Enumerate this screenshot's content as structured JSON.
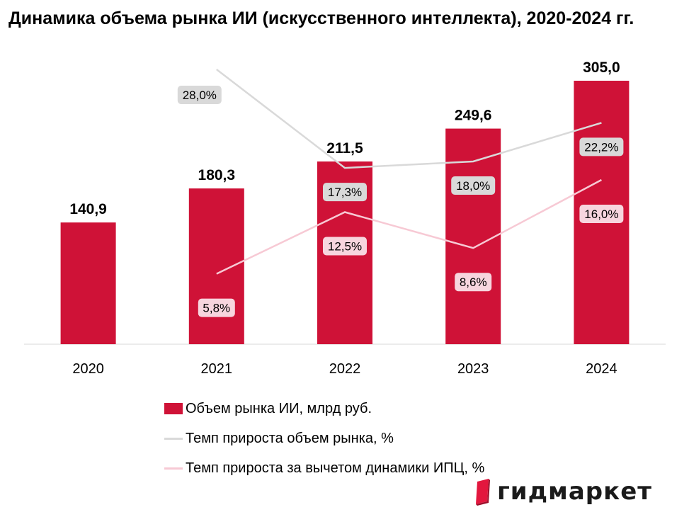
{
  "chart_data": {
    "type": "bar",
    "title": "Динамика объема рынка ИИ (искусственного интеллекта), 2020-2024 гг.",
    "categories": [
      "2020",
      "2021",
      "2022",
      "2023",
      "2024"
    ],
    "series": [
      {
        "name": "Объем рынка ИИ, млрд руб.",
        "kind": "bar",
        "values": [
          140.9,
          180.3,
          211.5,
          249.6,
          305.0
        ],
        "labels": [
          "140,9",
          "180,3",
          "211,5",
          "249,6",
          "305,0"
        ],
        "color": "#cf1237"
      },
      {
        "name": "Темп прироста объем рынка, %",
        "kind": "line",
        "values": [
          null,
          28.0,
          17.3,
          18.0,
          22.2
        ],
        "labels": [
          null,
          "28,0%",
          "17,3%",
          "18,0%",
          "22,2%"
        ],
        "color": "#d9d9d9",
        "label_bg": "#d9d9d9"
      },
      {
        "name": "Темп прироста за вычетом динамики ИПЦ, %",
        "kind": "line",
        "values": [
          null,
          5.8,
          12.5,
          8.6,
          16.0
        ],
        "labels": [
          null,
          "5,8%",
          "12,5%",
          "8,6%",
          "16,0%"
        ],
        "color": "#f7c9d4",
        "label_bg": "#f7d5de"
      }
    ],
    "ylim_bars": [
      0,
      305
    ],
    "grid": false,
    "legend_position": "bottom"
  },
  "brand": {
    "name": "гидмаркет",
    "logo_color": "#e3173e"
  }
}
